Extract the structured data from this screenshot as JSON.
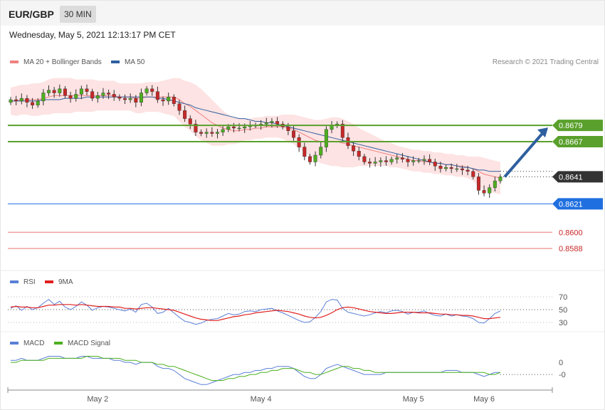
{
  "header": {
    "pair": "EUR/GBP",
    "timeframe": "30 MIN",
    "datetime": "Wednesday, May 5, 2021 12:13:17 PM CET"
  },
  "legend": {
    "ma20": "MA 20 + Bollinger Bands",
    "ma50": "MA 50",
    "rsi": "RSI",
    "rsi_ma": "9MA",
    "macd": "MACD",
    "macd_signal": "MACD Signal",
    "copyright": "Research © 2021 Trading Central"
  },
  "colors": {
    "ma20": "#f08080",
    "ma50": "#2f5fa0",
    "band_fill": "#fde3e3",
    "bull": "#4caf1f",
    "bear": "#c62828",
    "resistance": "#5aa02c",
    "support": "#1f6fe0",
    "support_red": "#f1a0a0",
    "price_tag": "#333333",
    "arrow": "#2f5fa0",
    "rsi_line": "#5b7fd6",
    "rsi_ma": "#e02020",
    "macd_line": "#5b7fd6",
    "macd_signal": "#4caf1f"
  },
  "chart_data": [
    {
      "type": "candlestick",
      "pane": "price",
      "levels": [
        {
          "value": 0.8679,
          "label": "0.8679",
          "kind": "resistance"
        },
        {
          "value": 0.8667,
          "label": "0.8667",
          "kind": "resistance"
        },
        {
          "value": 0.8641,
          "label": "0.8641",
          "kind": "last-price"
        },
        {
          "value": 0.8621,
          "label": "0.8621",
          "kind": "support"
        },
        {
          "value": 0.86,
          "label": "0.8600",
          "kind": "support"
        },
        {
          "value": 0.8588,
          "label": "0.8588",
          "kind": "support"
        }
      ],
      "ylim": [
        0.8576,
        0.8718
      ],
      "x_ticks": [
        {
          "label": "May 2",
          "index": 16
        },
        {
          "label": "May 4",
          "index": 46
        },
        {
          "label": "May 5",
          "index": 74
        },
        {
          "label": "May 6",
          "index": 87
        }
      ],
      "forecast": {
        "from": 0.8641,
        "to": 0.8679
      },
      "closes": [
        0.8698,
        0.8697,
        0.8699,
        0.8696,
        0.8694,
        0.8697,
        0.8703,
        0.8705,
        0.8703,
        0.8706,
        0.8701,
        0.8699,
        0.8702,
        0.8706,
        0.8704,
        0.8699,
        0.8701,
        0.8703,
        0.8702,
        0.87,
        0.8699,
        0.8698,
        0.8699,
        0.8696,
        0.8703,
        0.8706,
        0.8704,
        0.8698,
        0.8697,
        0.87,
        0.8695,
        0.869,
        0.8684,
        0.868,
        0.8674,
        0.8673,
        0.8674,
        0.8673,
        0.8674,
        0.8676,
        0.8678,
        0.8677,
        0.8677,
        0.8678,
        0.8679,
        0.8679,
        0.868,
        0.8681,
        0.8682,
        0.868,
        0.8678,
        0.8675,
        0.867,
        0.8663,
        0.8656,
        0.8652,
        0.8657,
        0.8663,
        0.8676,
        0.8679,
        0.868,
        0.867,
        0.8664,
        0.866,
        0.8656,
        0.8652,
        0.8651,
        0.8652,
        0.8653,
        0.8652,
        0.8654,
        0.8655,
        0.8654,
        0.8652,
        0.8653,
        0.8653,
        0.8654,
        0.8652,
        0.8649,
        0.8647,
        0.8648,
        0.8647,
        0.8647,
        0.8646,
        0.8645,
        0.8641,
        0.8631,
        0.8629,
        0.8633,
        0.8638,
        0.8641
      ],
      "ma20": [
        0.8697,
        0.8697,
        0.8698,
        0.8698,
        0.8698,
        0.8698,
        0.8699,
        0.87,
        0.8701,
        0.8701,
        0.8701,
        0.8701,
        0.8701,
        0.8701,
        0.8701,
        0.8701,
        0.8701,
        0.8701,
        0.8701,
        0.8701,
        0.87,
        0.87,
        0.87,
        0.8699,
        0.8699,
        0.87,
        0.87,
        0.87,
        0.87,
        0.87,
        0.87,
        0.8698,
        0.8695,
        0.8693,
        0.869,
        0.8687,
        0.8684,
        0.8681,
        0.8679,
        0.8677,
        0.8676,
        0.8675,
        0.8675,
        0.8676,
        0.8676,
        0.8677,
        0.8677,
        0.8678,
        0.8678,
        0.8678,
        0.8678,
        0.8677,
        0.8676,
        0.8674,
        0.8672,
        0.867,
        0.8668,
        0.8667,
        0.8667,
        0.8667,
        0.8667,
        0.8666,
        0.8665,
        0.8664,
        0.8663,
        0.8662,
        0.8661,
        0.866,
        0.8659,
        0.8658,
        0.8657,
        0.8656,
        0.8655,
        0.8654,
        0.8653,
        0.8653,
        0.8652,
        0.8652,
        0.8651,
        0.8651,
        0.865,
        0.865,
        0.8649,
        0.8649,
        0.8648,
        0.8647,
        0.8645,
        0.8643,
        0.8642,
        0.8641,
        0.864
      ],
      "ma50": [
        0.8697,
        0.8697,
        0.8697,
        0.8697,
        0.8697,
        0.8697,
        0.8698,
        0.8698,
        0.8698,
        0.8698,
        0.8699,
        0.8699,
        0.8699,
        0.8699,
        0.87,
        0.87,
        0.87,
        0.87,
        0.87,
        0.87,
        0.87,
        0.87,
        0.87,
        0.87,
        0.87,
        0.87,
        0.87,
        0.8699,
        0.8699,
        0.8698,
        0.8697,
        0.8696,
        0.8695,
        0.8694,
        0.8692,
        0.8691,
        0.869,
        0.8689,
        0.8688,
        0.8687,
        0.8686,
        0.8685,
        0.8684,
        0.8684,
        0.8683,
        0.8682,
        0.8682,
        0.8681,
        0.8681,
        0.868,
        0.8679,
        0.8678,
        0.8677,
        0.8676,
        0.8675,
        0.8674,
        0.8673,
        0.8672,
        0.8671,
        0.867,
        0.8669,
        0.8668,
        0.8667,
        0.8666,
        0.8665,
        0.8664,
        0.8663,
        0.8662,
        0.8661,
        0.866,
        0.8659,
        0.8658,
        0.8657,
        0.8656,
        0.8655,
        0.8654,
        0.8653,
        0.8652,
        0.8651,
        0.8651,
        0.865,
        0.865,
        0.8649,
        0.8648,
        0.8648,
        0.8647,
        0.8646,
        0.8646,
        0.8645,
        0.8645,
        0.8645
      ],
      "band_width": [
        0.001,
        0.0011,
        0.0011,
        0.0011,
        0.0012,
        0.0012,
        0.0012,
        0.0013,
        0.0013,
        0.0013,
        0.0013,
        0.0013,
        0.0012,
        0.0012,
        0.0012,
        0.0012,
        0.0011,
        0.0011,
        0.0011,
        0.0011,
        0.001,
        0.001,
        0.001,
        0.0011,
        0.0011,
        0.0011,
        0.0011,
        0.0011,
        0.0012,
        0.0013,
        0.0014,
        0.0016,
        0.0017,
        0.0018,
        0.0019,
        0.0019,
        0.0018,
        0.0017,
        0.0015,
        0.0013,
        0.0011,
        0.001,
        0.0009,
        0.0008,
        0.0008,
        0.0008,
        0.0008,
        0.0008,
        0.0008,
        0.0008,
        0.0009,
        0.001,
        0.0011,
        0.0012,
        0.0013,
        0.0014,
        0.0015,
        0.0016,
        0.0017,
        0.0018,
        0.0018,
        0.0018,
        0.0017,
        0.0016,
        0.0014,
        0.0013,
        0.0012,
        0.0011,
        0.001,
        0.0009,
        0.0009,
        0.0008,
        0.0008,
        0.0008,
        0.0008,
        0.0008,
        0.0008,
        0.0008,
        0.0008,
        0.0008,
        0.0008,
        0.0008,
        0.0008,
        0.0008,
        0.0008,
        0.0009,
        0.0011,
        0.0012,
        0.0012,
        0.0012,
        0.0012
      ]
    },
    {
      "type": "line",
      "pane": "rsi",
      "y_ticks": [
        "70",
        "50",
        "30"
      ],
      "ylim": [
        20,
        80
      ],
      "series": [
        {
          "name": "RSI",
          "values": [
            52,
            56,
            49,
            55,
            50,
            53,
            60,
            66,
            58,
            63,
            54,
            50,
            55,
            62,
            57,
            49,
            53,
            55,
            54,
            52,
            50,
            48,
            51,
            46,
            58,
            60,
            54,
            44,
            46,
            52,
            45,
            38,
            32,
            30,
            27,
            29,
            33,
            35,
            36,
            40,
            44,
            42,
            43,
            47,
            48,
            47,
            50,
            51,
            52,
            48,
            45,
            41,
            37,
            33,
            30,
            31,
            38,
            47,
            62,
            66,
            65,
            52,
            46,
            44,
            42,
            40,
            42,
            45,
            47,
            45,
            48,
            49,
            47,
            43,
            46,
            46,
            48,
            44,
            41,
            40,
            43,
            40,
            42,
            40,
            39,
            36,
            30,
            29,
            36,
            44,
            48
          ]
        },
        {
          "name": "9MA",
          "values": [
            54,
            55,
            54,
            54,
            53,
            53,
            55,
            57,
            57,
            58,
            58,
            58,
            57,
            58,
            57,
            56,
            55,
            55,
            55,
            54,
            54,
            52,
            52,
            51,
            52,
            53,
            53,
            52,
            51,
            50,
            49,
            46,
            43,
            40,
            37,
            35,
            34,
            33,
            33,
            35,
            37,
            39,
            40,
            42,
            43,
            45,
            46,
            47,
            48,
            49,
            48,
            47,
            45,
            43,
            40,
            38,
            37,
            38,
            41,
            45,
            50,
            53,
            54,
            53,
            51,
            49,
            47,
            46,
            45,
            44,
            44,
            45,
            46,
            46,
            46,
            45,
            45,
            45,
            44,
            43,
            43,
            42,
            42,
            41,
            41,
            40,
            38,
            36,
            36,
            37,
            38
          ]
        }
      ]
    },
    {
      "type": "line",
      "pane": "macd",
      "y_ticks": [
        "0",
        "-0"
      ],
      "ylim": [
        -0.0013,
        0.0006
      ],
      "series": [
        {
          "name": "MACD",
          "values": [
            0.0001,
            0.0001,
            0.0002,
            0.0001,
            0.0001,
            0.0001,
            0.0002,
            0.0003,
            0.0003,
            0.0003,
            0.0002,
            0.0002,
            0.0002,
            0.0003,
            0.0003,
            0.0002,
            0.0002,
            0.0002,
            0.0002,
            0.0001,
            0.0001,
            0.0,
            0.0,
            -0.0001,
            0.0,
            0.0,
            0.0,
            -0.0002,
            -0.0003,
            -0.0003,
            -0.0004,
            -0.0006,
            -0.0008,
            -0.0009,
            -0.001,
            -0.0011,
            -0.0011,
            -0.001,
            -0.0009,
            -0.0008,
            -0.0007,
            -0.0006,
            -0.0006,
            -0.0005,
            -0.0005,
            -0.0004,
            -0.0004,
            -0.0003,
            -0.0003,
            -0.0002,
            -0.0002,
            -0.0002,
            -0.0003,
            -0.0005,
            -0.0007,
            -0.0008,
            -0.0008,
            -0.0006,
            -0.0003,
            -0.0002,
            -0.0001,
            -0.0002,
            -0.0003,
            -0.0004,
            -0.0005,
            -0.0006,
            -0.0006,
            -0.0006,
            -0.0006,
            -0.0005,
            -0.0005,
            -0.0005,
            -0.0005,
            -0.0005,
            -0.0005,
            -0.0005,
            -0.0005,
            -0.0005,
            -0.0005,
            -0.0005,
            -0.0004,
            -0.0004,
            -0.0004,
            -0.0005,
            -0.0005,
            -0.0005,
            -0.0006,
            -0.0007,
            -0.0006,
            -0.0005,
            -0.0005
          ]
        },
        {
          "name": "MACD Signal",
          "values": [
            0.0,
            0.0,
            0.0001,
            0.0001,
            0.0001,
            0.0001,
            0.0001,
            0.0002,
            0.0002,
            0.0002,
            0.0002,
            0.0002,
            0.0002,
            0.0002,
            0.0003,
            0.0003,
            0.0003,
            0.0002,
            0.0002,
            0.0002,
            0.0002,
            0.0001,
            0.0001,
            0.0001,
            0.0,
            0.0,
            0.0,
            -0.0001,
            -0.0001,
            -0.0002,
            -0.0002,
            -0.0003,
            -0.0004,
            -0.0005,
            -0.0006,
            -0.0007,
            -0.0008,
            -0.0009,
            -0.0009,
            -0.0009,
            -0.0008,
            -0.0008,
            -0.0007,
            -0.0007,
            -0.0006,
            -0.0006,
            -0.0005,
            -0.0005,
            -0.0004,
            -0.0004,
            -0.0003,
            -0.0003,
            -0.0003,
            -0.0004,
            -0.0005,
            -0.0005,
            -0.0006,
            -0.0006,
            -0.0005,
            -0.0004,
            -0.0003,
            -0.0002,
            -0.0002,
            -0.0003,
            -0.0003,
            -0.0004,
            -0.0004,
            -0.0005,
            -0.0005,
            -0.0005,
            -0.0005,
            -0.0005,
            -0.0005,
            -0.0005,
            -0.0005,
            -0.0005,
            -0.0005,
            -0.0005,
            -0.0005,
            -0.0005,
            -0.0005,
            -0.0005,
            -0.0005,
            -0.0005,
            -0.0005,
            -0.0005,
            -0.0005,
            -0.0005,
            -0.0006,
            -0.0006,
            -0.0005
          ]
        }
      ]
    }
  ]
}
